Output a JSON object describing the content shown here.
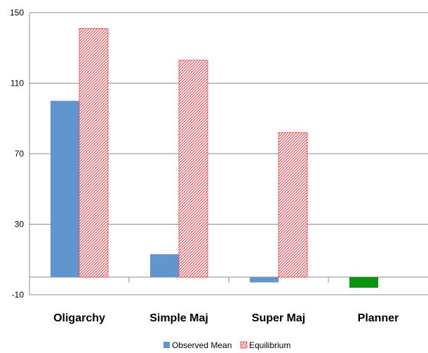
{
  "chart_data": {
    "type": "bar",
    "title": "",
    "xlabel": "",
    "ylabel": "",
    "ylim": [
      -10,
      150
    ],
    "yticks": [
      150,
      110,
      70,
      30,
      -10
    ],
    "grid": "horizontal",
    "legend_placement": "bottom",
    "categories": [
      "Oligarchy",
      "Simple Maj",
      "Super Maj",
      "Planner"
    ],
    "series": [
      {
        "name": "Observed Mean",
        "values": [
          100,
          13,
          -3,
          -6
        ],
        "color": "#6195CE",
        "point_colors": [
          "#6195CE",
          "#6195CE",
          "#6195CE",
          "#07960B"
        ],
        "pattern": "solid"
      },
      {
        "name": "Equilibrium",
        "values": [
          141,
          123,
          82,
          null
        ],
        "color": "#E8434A",
        "pattern": "diagonal-hatch"
      }
    ]
  }
}
